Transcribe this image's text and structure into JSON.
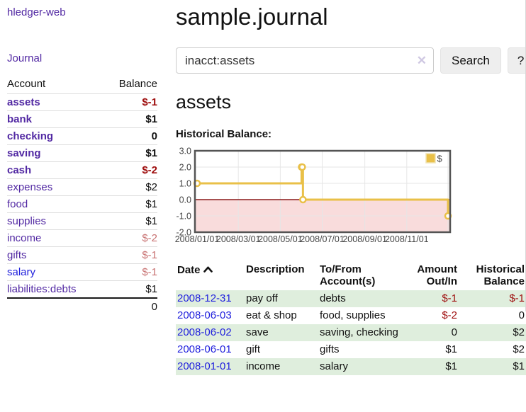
{
  "app": {
    "brand": "hledger-web"
  },
  "sidebar": {
    "journal_link": "Journal",
    "accounts_table": {
      "headers": {
        "account": "Account",
        "balance": "Balance"
      },
      "rows": [
        {
          "name": "assets",
          "balance": "$-1",
          "level": 1,
          "bold": true,
          "balance_style": "neg-strong",
          "link_style": "purple"
        },
        {
          "name": "bank",
          "balance": "$1",
          "level": 2,
          "bold": true,
          "balance_style": "normal",
          "link_style": "purple"
        },
        {
          "name": "checking",
          "balance": "0",
          "level": 3,
          "bold": true,
          "balance_style": "normal",
          "link_style": "purple"
        },
        {
          "name": "saving",
          "balance": "$1",
          "level": 3,
          "bold": true,
          "balance_style": "normal",
          "link_style": "purple"
        },
        {
          "name": "cash",
          "balance": "$-2",
          "level": 2,
          "bold": true,
          "balance_style": "neg-strong",
          "link_style": "purple"
        },
        {
          "name": "expenses",
          "balance": "$2",
          "level": 1,
          "bold": false,
          "balance_style": "normal",
          "link_style": "purple"
        },
        {
          "name": "food",
          "balance": "$1",
          "level": 2,
          "bold": false,
          "balance_style": "normal",
          "link_style": "purple"
        },
        {
          "name": "supplies",
          "balance": "$1",
          "level": 2,
          "bold": false,
          "balance_style": "normal",
          "link_style": "purple"
        },
        {
          "name": "income",
          "balance": "$-2",
          "level": 1,
          "bold": false,
          "balance_style": "neg-muted",
          "link_style": "purple"
        },
        {
          "name": "gifts",
          "balance": "$-1",
          "level": 2,
          "bold": false,
          "balance_style": "neg-muted",
          "link_style": "purple"
        },
        {
          "name": "salary",
          "balance": "$-1",
          "level": 2,
          "bold": false,
          "balance_style": "neg-muted",
          "link_style": "blue"
        },
        {
          "name": "liabilities:debts",
          "balance": "$1",
          "level": 1,
          "bold": false,
          "balance_style": "normal",
          "link_style": "purple"
        }
      ],
      "total": "0"
    }
  },
  "main": {
    "title": "sample.journal",
    "search": {
      "value": "inacct:assets",
      "clear_icon": "✕",
      "search_button": "Search",
      "help_button": "?"
    },
    "account_heading": "assets",
    "chart_label": "Historical Balance:",
    "register": {
      "headers": {
        "date": "Date",
        "description": "Description",
        "tofrom": "To/From Account(s)",
        "amount": "Amount Out/In",
        "balance": "Historical Balance"
      },
      "rows": [
        {
          "date": "2008-12-31",
          "description": "pay off",
          "tofrom": "debts",
          "amount": "$-1",
          "amount_style": "neg-strong",
          "balance": "$-1",
          "balance_style": "neg-strong",
          "shaded": true
        },
        {
          "date": "2008-06-03",
          "description": "eat & shop",
          "tofrom": "food, supplies",
          "amount": "$-2",
          "amount_style": "neg-strong",
          "balance": "0",
          "balance_style": "normal",
          "shaded": false
        },
        {
          "date": "2008-06-02",
          "description": "save",
          "tofrom": "saving, checking",
          "amount": "0",
          "amount_style": "normal",
          "balance": "$2",
          "balance_style": "normal",
          "shaded": true
        },
        {
          "date": "2008-06-01",
          "description": "gift",
          "tofrom": "gifts",
          "amount": "$1",
          "amount_style": "normal",
          "balance": "$2",
          "balance_style": "normal",
          "shaded": false
        },
        {
          "date": "2008-01-01",
          "description": "income",
          "tofrom": "salary",
          "amount": "$1",
          "amount_style": "normal",
          "balance": "$1",
          "balance_style": "normal",
          "shaded": true
        }
      ]
    }
  },
  "chart_data": {
    "type": "line",
    "title": "Historical Balance",
    "step": true,
    "series": [
      {
        "name": "$",
        "points": [
          [
            "2008-01-01",
            1
          ],
          [
            "2008-06-01",
            2
          ],
          [
            "2008-06-02",
            2
          ],
          [
            "2008-06-03",
            0
          ],
          [
            "2008-12-31",
            -1
          ]
        ]
      }
    ],
    "x_range": [
      "2008-01-01",
      "2008-12-31"
    ],
    "x_ticks": [
      "2008/01/01",
      "2008/03/01",
      "2008/05/01",
      "2008/07/01",
      "2008/09/01",
      "2008/11/01"
    ],
    "y_ticks": [
      "3.0",
      "2.0",
      "1.0",
      "0.0",
      "-1.0",
      "-2.0"
    ],
    "ylim": [
      -2,
      3
    ],
    "grid": true,
    "legend": {
      "label": "$",
      "position": "top-right"
    },
    "colors": {
      "line": "#E9C048",
      "point_fill": "#FFFFFF",
      "negative_fill": "#F9DCDC",
      "zero_line": "#8B1A1A",
      "grid": "#E6E6E6",
      "border": "#545454"
    }
  },
  "colors": {
    "link_purple": "#5229A3",
    "link_blue": "#2222DD",
    "negative_strong": "#9D0B0B",
    "negative_muted": "#C87272",
    "row_green": "#DFEEDD",
    "button_bg": "#EEEEEE",
    "divider": "#D8D8D8",
    "clear_icon": "#CFC8E2"
  }
}
